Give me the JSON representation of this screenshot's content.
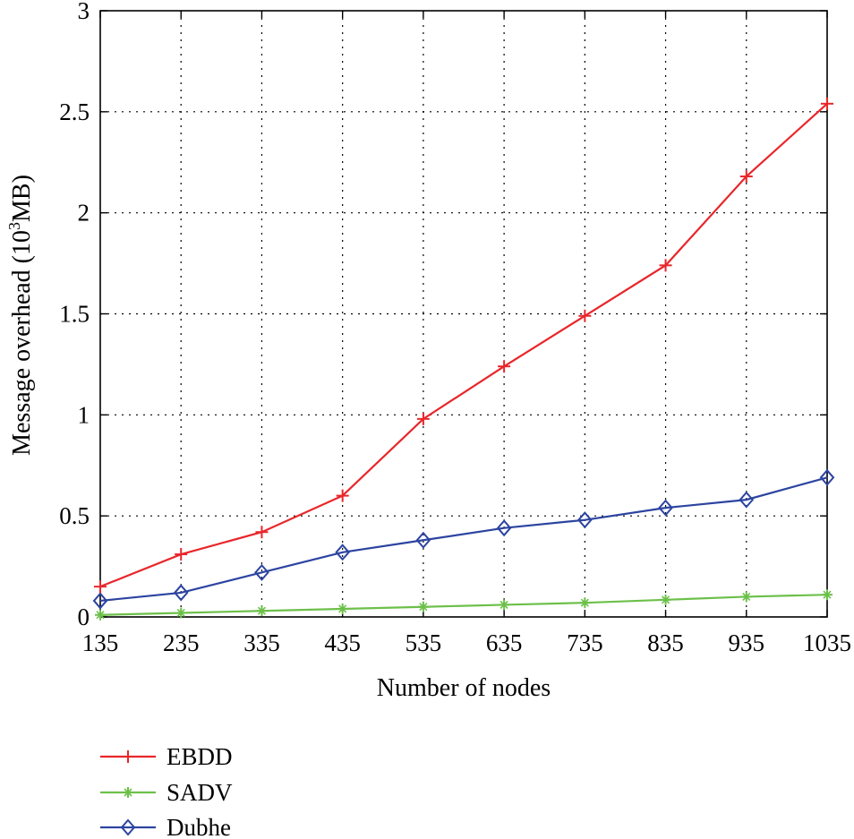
{
  "chart_data": {
    "type": "line",
    "xlabel": "Number of nodes",
    "ylabel_main": "Message overhead (10",
    "ylabel_sup": "3",
    "ylabel_end": "MB)",
    "xlim": [
      135,
      1035
    ],
    "ylim": [
      0,
      3
    ],
    "grid": true,
    "legend_position": "below",
    "x": [
      135,
      235,
      335,
      435,
      535,
      635,
      735,
      835,
      935,
      1035
    ],
    "x_tick_labels": [
      "135",
      "235",
      "335",
      "435",
      "535",
      "635",
      "735",
      "835",
      "935",
      "1035"
    ],
    "y_ticks": [
      0,
      0.5,
      1,
      1.5,
      2,
      2.5,
      3
    ],
    "y_tick_labels": [
      "0",
      "0.5",
      "1",
      "1.5",
      "2",
      "2.5",
      "3"
    ],
    "series": [
      {
        "name": "EBDD",
        "color": "#e8262a",
        "marker": "plus",
        "values": [
          0.15,
          0.31,
          0.42,
          0.6,
          0.98,
          1.24,
          1.49,
          1.74,
          2.18,
          2.54
        ]
      },
      {
        "name": "SADV",
        "color": "#6cc04a",
        "marker": "star",
        "values": [
          0.01,
          0.02,
          0.03,
          0.04,
          0.05,
          0.06,
          0.07,
          0.085,
          0.1,
          0.11
        ]
      },
      {
        "name": "Dubhe",
        "color": "#2c44a0",
        "marker": "diamond",
        "values": [
          0.08,
          0.12,
          0.22,
          0.32,
          0.38,
          0.44,
          0.48,
          0.54,
          0.58,
          0.69
        ]
      }
    ]
  }
}
